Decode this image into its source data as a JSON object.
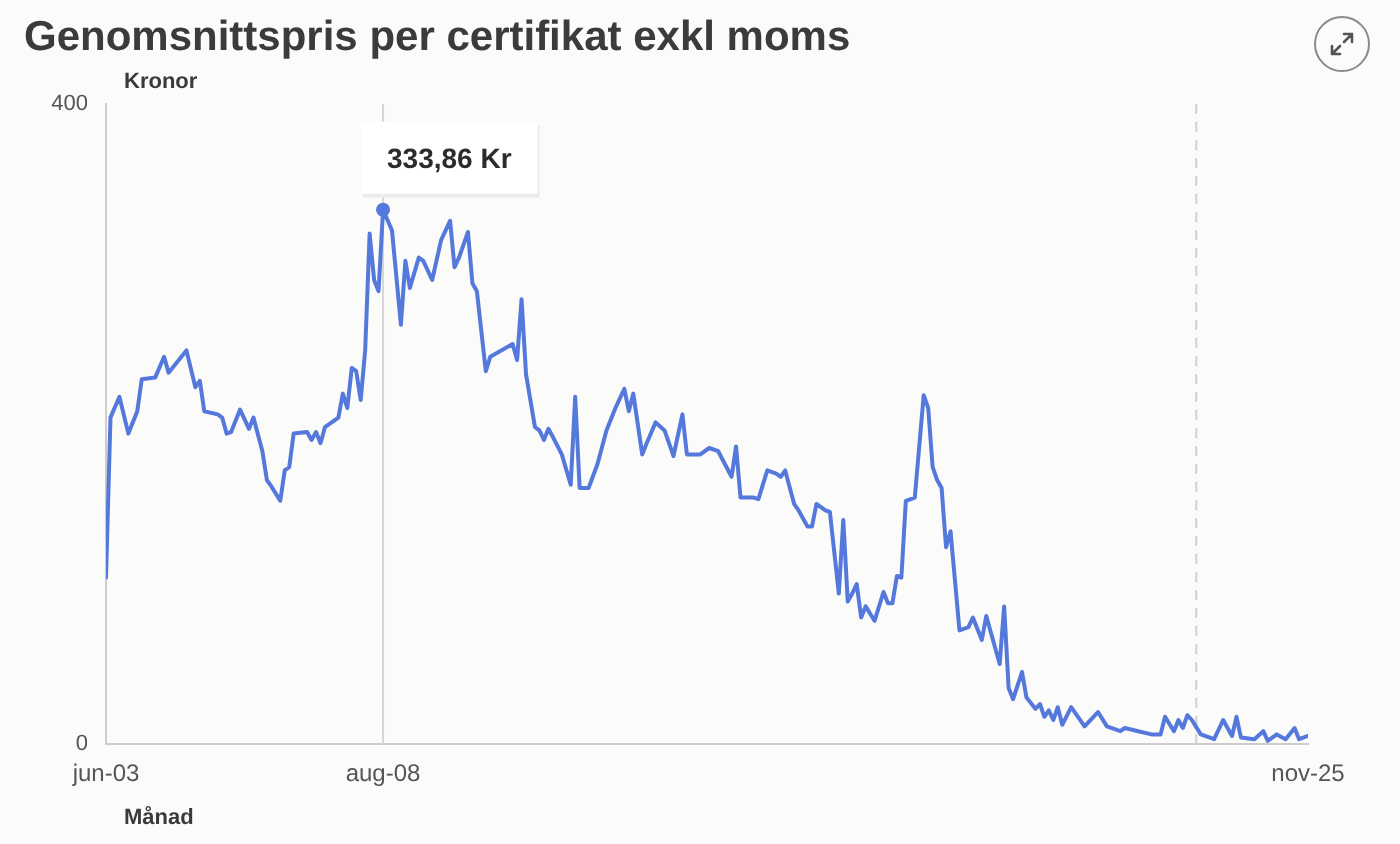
{
  "chart_data": {
    "type": "line",
    "title": "Genomsnittspris per certifikat exkl moms",
    "xlabel": "Månad",
    "ylabel": "Kronor",
    "x": [
      "2003-06",
      "2003-07",
      "2003-09",
      "2003-11",
      "2004-01",
      "2004-02",
      "2004-05",
      "2004-07",
      "2004-08",
      "2004-12",
      "2005-02",
      "2005-03",
      "2005-04",
      "2005-07",
      "2005-08",
      "2005-09",
      "2005-10",
      "2005-12",
      "2006-02",
      "2006-03",
      "2006-05",
      "2006-06",
      "2006-07",
      "2006-09",
      "2006-10",
      "2006-11",
      "2006-12",
      "2007-03",
      "2007-04",
      "2007-05",
      "2007-06",
      "2007-07",
      "2007-10",
      "2007-11",
      "2007-12",
      "2008-01",
      "2008-02",
      "2008-03",
      "2008-04",
      "2008-05",
      "2008-06",
      "2008-07",
      "2008-08",
      "2008-10",
      "2008-12",
      "2009-01",
      "2009-02",
      "2009-04",
      "2009-05",
      "2009-07",
      "2009-09",
      "2009-11",
      "2009-12",
      "2010-01",
      "2010-03",
      "2010-04",
      "2010-05",
      "2010-07",
      "2010-08",
      "2011-01",
      "2011-02",
      "2011-03",
      "2011-04",
      "2011-06",
      "2011-07",
      "2011-08",
      "2011-09",
      "2011-10",
      "2011-12",
      "2012-02",
      "2012-03",
      "2012-04",
      "2012-06",
      "2012-08",
      "2012-10",
      "2012-12",
      "2013-02",
      "2013-03",
      "2013-04",
      "2013-06",
      "2013-07",
      "2013-09",
      "2013-11",
      "2014-01",
      "2014-03",
      "2014-04",
      "2014-07",
      "2014-09",
      "2014-11",
      "2015-02",
      "2015-03",
      "2015-04",
      "2015-07",
      "2015-08",
      "2015-10",
      "2015-12",
      "2016-01",
      "2016-02",
      "2016-04",
      "2016-05",
      "2016-07",
      "2016-08",
      "2016-09",
      "2016-11",
      "2016-12",
      "2017-02",
      "2017-03",
      "2017-04",
      "2017-05",
      "2017-06",
      "2017-07",
      "2017-08",
      "2017-10",
      "2017-12",
      "2018-01",
      "2018-02",
      "2018-03",
      "2018-04",
      "2018-05",
      "2018-07",
      "2018-09",
      "2018-10",
      "2018-11",
      "2018-12",
      "2019-01",
      "2019-02",
      "2019-03",
      "2019-05",
      "2019-07",
      "2019-08",
      "2019-10",
      "2019-11",
      "2020-02",
      "2020-03",
      "2020-04",
      "2020-05",
      "2020-07",
      "2020-08",
      "2020-10",
      "2020-11",
      "2020-12",
      "2021-01",
      "2021-02",
      "2021-03",
      "2021-04",
      "2021-06",
      "2021-09",
      "2021-11",
      "2021-12",
      "2022-02",
      "2022-05",
      "2022-06",
      "2022-09",
      "2022-12",
      "2023-02",
      "2023-03",
      "2023-05",
      "2023-06",
      "2023-07",
      "2023-08",
      "2023-09",
      "2023-11",
      "2024-02",
      "2024-04",
      "2024-06",
      "2024-07",
      "2024-08",
      "2024-11",
      "2025-01",
      "2025-02",
      "2025-04",
      "2025-06",
      "2025-08",
      "2025-09",
      "2025-11"
    ],
    "series": [
      {
        "color": "#5578dc",
        "values": [
          104,
          204,
          217,
          194,
          208,
          228,
          229,
          242,
          232,
          246,
          223,
          227,
          208,
          206,
          204,
          194,
          195,
          209,
          197,
          204,
          183,
          165,
          161,
          152,
          171,
          173,
          194,
          195,
          190,
          195,
          188,
          198,
          204,
          219,
          210,
          235,
          233,
          215,
          246,
          319,
          290,
          283,
          333.86,
          321,
          262,
          302,
          285,
          304,
          302,
          290,
          315,
          327,
          298,
          304,
          320,
          288,
          283,
          233,
          242,
          250,
          240,
          278,
          231,
          198,
          196,
          190,
          197,
          192,
          181,
          162,
          217,
          160,
          160,
          175,
          196,
          210,
          222,
          208,
          219,
          181,
          188,
          201,
          196,
          180,
          206,
          181,
          181,
          185,
          183,
          167,
          186,
          154,
          154,
          153,
          171,
          169,
          167,
          171,
          150,
          146,
          136,
          136,
          150,
          146,
          145,
          94,
          140,
          89,
          94,
          100,
          79,
          86,
          77,
          95,
          88,
          88,
          105,
          104,
          152,
          154,
          218,
          210,
          173,
          165,
          160,
          123,
          133,
          71,
          73,
          79,
          65,
          80,
          50,
          86,
          35,
          28,
          45,
          29,
          22,
          25,
          17,
          21,
          15,
          23,
          12,
          23,
          11,
          17,
          20,
          11,
          8,
          10,
          8,
          6,
          6,
          17,
          8,
          15,
          10,
          18,
          15,
          6,
          3,
          15,
          5,
          17,
          4,
          3,
          8,
          2,
          6,
          3,
          10,
          3,
          5
        ]
      }
    ],
    "xlim": [
      "2003-06",
      "2025-11"
    ],
    "xticks": [
      {
        "value": "2003-06",
        "label": "jun-03"
      },
      {
        "value": "2008-08",
        "label": "aug-08"
      },
      {
        "value": "2025-11",
        "label": "nov-25"
      }
    ],
    "ylim": [
      0,
      400
    ],
    "yticks": [
      0,
      400
    ],
    "ref_lines": [
      {
        "axis": "x",
        "value": "2008-08",
        "color": "#d6d6d6"
      },
      {
        "axis": "x",
        "value": "2023-10",
        "color": "#cfcfcf",
        "line_style": "dashed"
      }
    ],
    "annotations": [
      {
        "text": "333,86 Kr",
        "x": "2008-08",
        "y": 333.86
      }
    ]
  }
}
